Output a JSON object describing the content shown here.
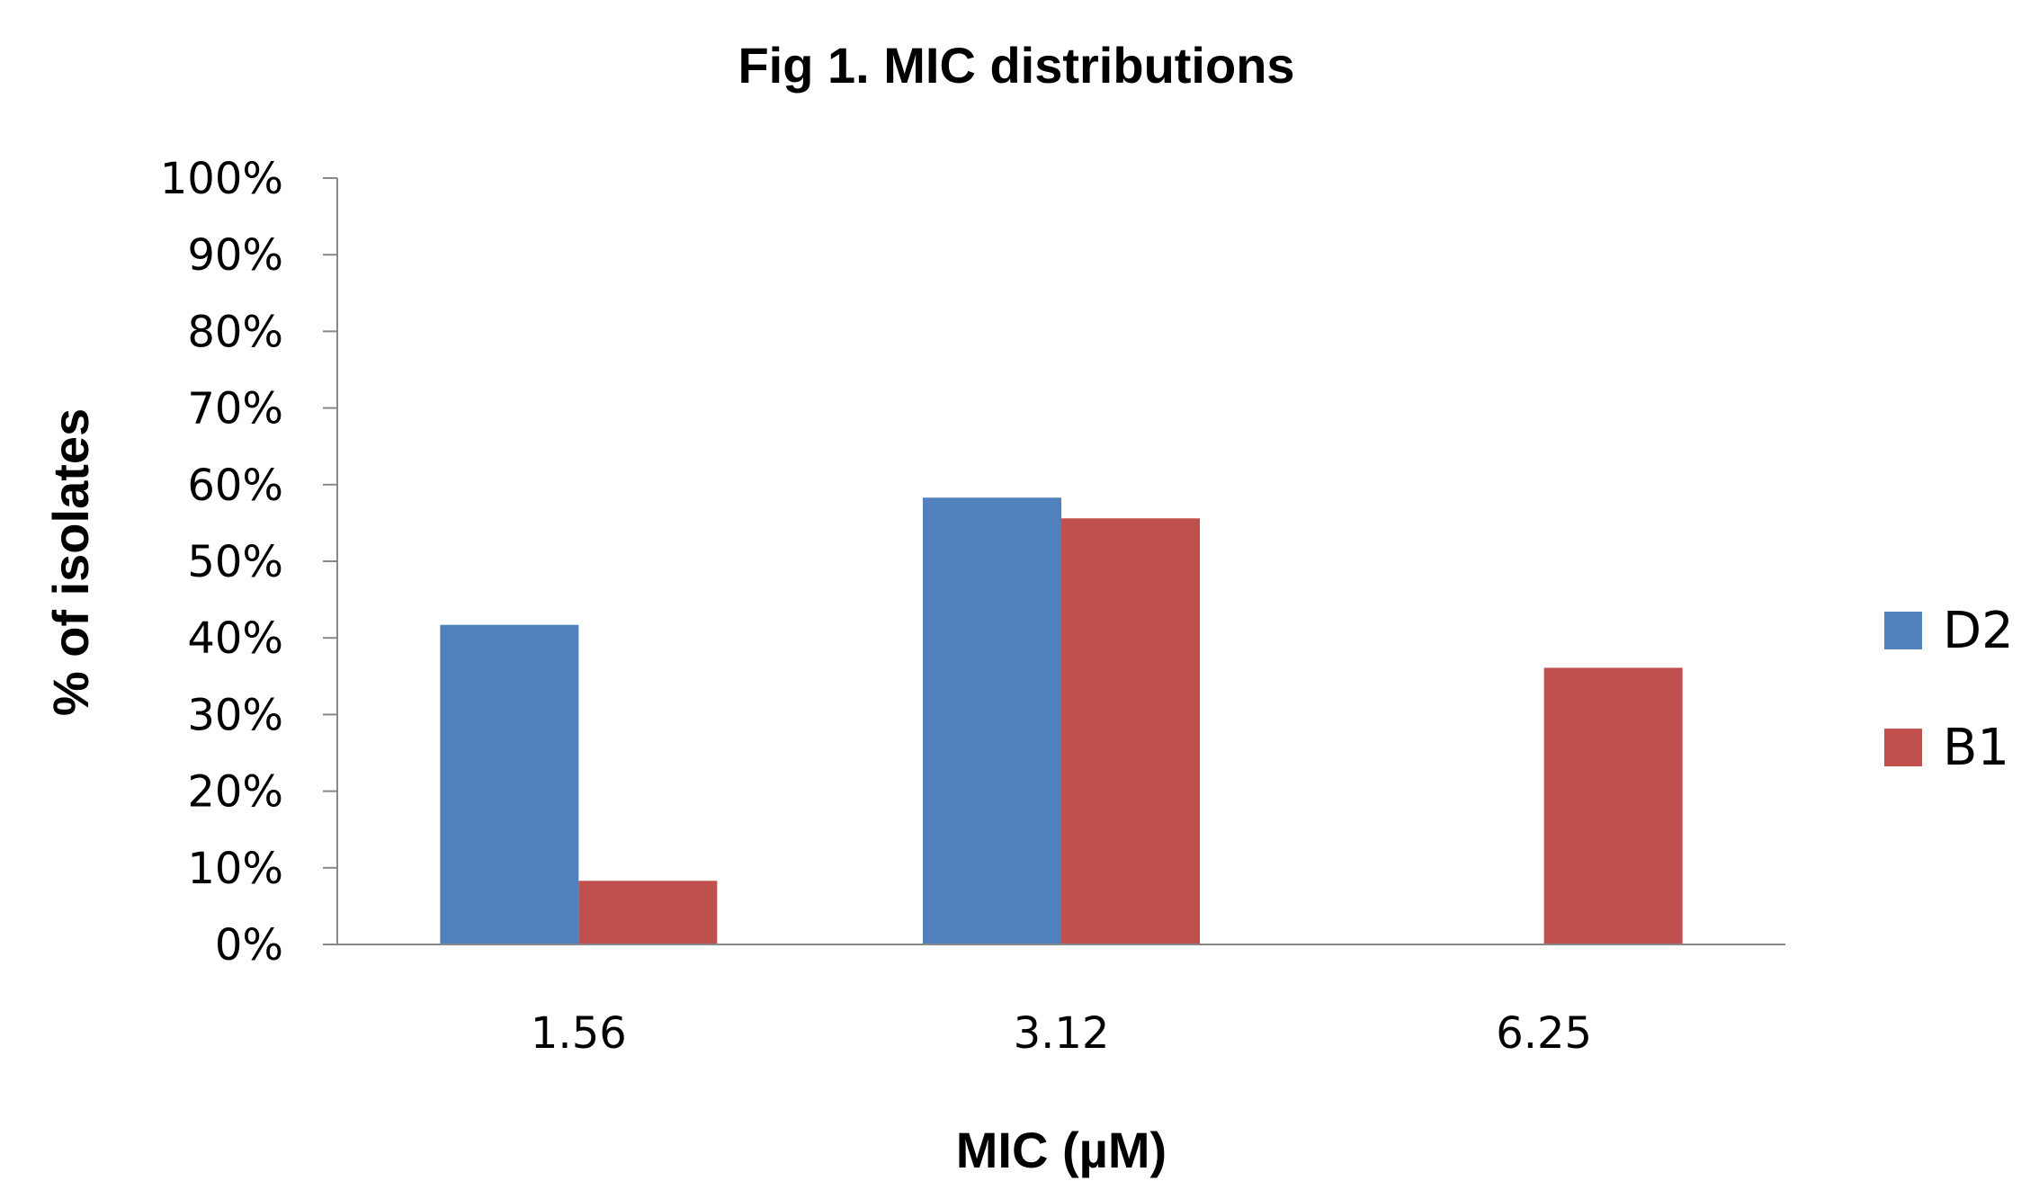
{
  "chart_data": {
    "type": "bar",
    "title": "Fig 1. MIC distributions",
    "xlabel": "MIC (µM)",
    "ylabel": "% of isolates",
    "categories": [
      "1.56",
      "3.12",
      "6.25"
    ],
    "series": [
      {
        "name": "D2",
        "color": "#4F81BD",
        "values": [
          41.7,
          58.3,
          0
        ]
      },
      {
        "name": "B1",
        "color": "#C0504D",
        "values": [
          8.3,
          55.6,
          36.1
        ]
      }
    ],
    "ylim": [
      0,
      100
    ],
    "yticks": [
      0,
      10,
      20,
      30,
      40,
      50,
      60,
      70,
      80,
      90,
      100
    ],
    "ytick_labels": [
      "0%",
      "10%",
      "20%",
      "30%",
      "40%",
      "50%",
      "60%",
      "70%",
      "80%",
      "90%",
      "100%"
    ],
    "grid": false,
    "legend_position": "right"
  }
}
